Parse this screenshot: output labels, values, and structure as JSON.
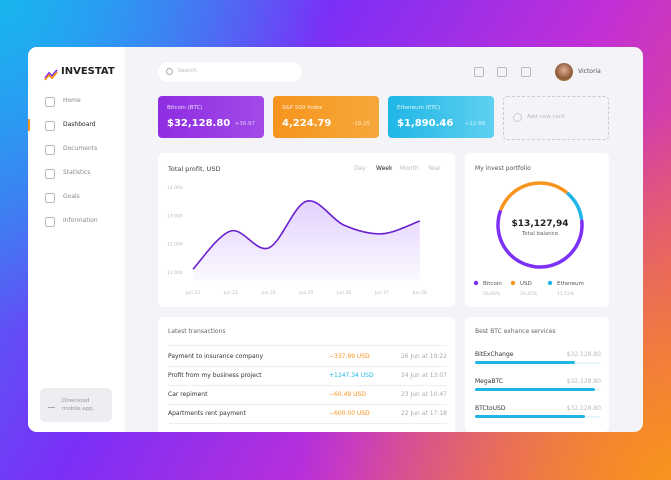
{
  "brand": "INVESTAT",
  "sidebar": {
    "nav": [
      "Home",
      "Dashboard",
      "Documents",
      "Statistics",
      "Goals",
      "Information"
    ],
    "download": "Download mobile app"
  },
  "header": {
    "search": "Search",
    "user": "Victoria"
  },
  "cards": [
    {
      "name": "Bitcoin (BTC)",
      "value": "$32,128.80",
      "change": "+36.97"
    },
    {
      "name": "S&P 500 Index",
      "value": "4,224.79",
      "change": "-18.25"
    },
    {
      "name": "Ethereum (ETC)",
      "value": "$1,890.46",
      "change": "+12.88"
    }
  ],
  "add_card": "Add new card",
  "chart_tabs": [
    "Day",
    "Week",
    "Month",
    "Year"
  ],
  "portfolio": {
    "total": "$13,127,94",
    "total_label": "Total balance"
  },
  "transactions": {
    "title": "Latest transactions",
    "rows": [
      [
        "Payment to insurance company",
        "−337.99 USD",
        "26 Jun at 19:22"
      ],
      [
        "Profit from my business project",
        "+1247.34 USD",
        "24 Jun at 13:07"
      ],
      [
        "Car repiment",
        "−60.49 USD",
        "23 Jun at 10:47"
      ],
      [
        "Apartments rent payment",
        "−600.00 USD",
        "22 Jun at 17:18"
      ]
    ]
  },
  "services": {
    "title": "Best BTC exhance services",
    "rows": [
      [
        "BitExChange",
        "$32,128.80"
      ],
      [
        "MegaBTC",
        "$32,128.80"
      ],
      [
        "BTCtoUSD",
        "$32,128.80"
      ]
    ]
  },
  "chart_data": [
    {
      "type": "line",
      "title": "Total profit, USD",
      "categories": [
        "Jun 22",
        "Jun 23",
        "Jun 24",
        "Jun 25",
        "Jun 26",
        "Jun 27",
        "Jun 28"
      ],
      "values": [
        11100,
        12450,
        11850,
        13500,
        12650,
        12350,
        12800
      ],
      "color": "#6a1fd0",
      "ylim": [
        10700,
        14250
      ],
      "yticks": [
        {
          "value": 11000,
          "label": "11 000"
        },
        {
          "value": 12000,
          "label": "12 000"
        },
        {
          "value": 13000,
          "label": "13 000"
        },
        {
          "value": 14000,
          "label": "14 000"
        }
      ],
      "grid": false
    },
    {
      "type": "pie",
      "title": "My invest portfolio",
      "categories": [
        "Bitcoin",
        "USD",
        "Ethereum"
      ],
      "values": [
        56,
        29.45,
        11.52
      ],
      "value_labels": [
        "56.00%",
        "29.45%",
        "11.52%"
      ],
      "colors": [
        "#7b2ff7",
        "#f7941d",
        "#1fb6e6"
      ]
    }
  ]
}
